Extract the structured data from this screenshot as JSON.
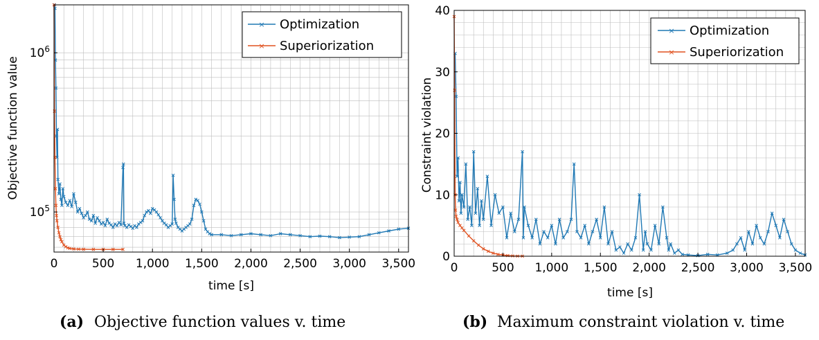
{
  "colors": {
    "optimization": "#1f78b4",
    "superiorization": "#e0501e",
    "grid": "#bdbdbd"
  },
  "chart_data": [
    {
      "type": "line",
      "panel": "a",
      "caption_tag": "(a)",
      "caption_text": "Objective function values v. time",
      "xlabel": "time [s]",
      "ylabel": "Objective function value",
      "xlim": [
        0,
        3600
      ],
      "ylim": [
        56000,
        2000000
      ],
      "yscale": "log",
      "grid": true,
      "legend": "top-right",
      "xticks": [
        0,
        500,
        1000,
        1500,
        2000,
        2500,
        3000,
        3500
      ],
      "xtick_labels": [
        "0",
        "500",
        "1,000",
        "1,500",
        "2,000",
        "2,500",
        "3,000",
        "3,500"
      ],
      "yticks": [
        100000,
        1000000
      ],
      "ytick_base": "10",
      "ytick_exps": [
        "5",
        "6"
      ],
      "series": [
        {
          "name": "Optimization",
          "x": [
            5,
            10,
            15,
            20,
            25,
            30,
            35,
            40,
            50,
            60,
            70,
            80,
            90,
            100,
            120,
            140,
            160,
            180,
            200,
            220,
            240,
            260,
            280,
            300,
            320,
            340,
            360,
            380,
            400,
            420,
            440,
            460,
            480,
            500,
            520,
            540,
            560,
            580,
            600,
            620,
            640,
            660,
            680,
            700,
            705,
            710,
            720,
            740,
            760,
            780,
            800,
            820,
            840,
            860,
            880,
            900,
            920,
            940,
            960,
            980,
            1000,
            1020,
            1040,
            1060,
            1080,
            1100,
            1120,
            1140,
            1160,
            1180,
            1200,
            1210,
            1220,
            1230,
            1240,
            1260,
            1280,
            1300,
            1320,
            1340,
            1360,
            1380,
            1400,
            1420,
            1440,
            1460,
            1480,
            1500,
            1520,
            1540,
            1560,
            1580,
            1600,
            1700,
            1800,
            1900,
            2000,
            2100,
            2200,
            2300,
            2400,
            2500,
            2600,
            2700,
            2800,
            2900,
            3000,
            3100,
            3200,
            3300,
            3400,
            3500,
            3600
          ],
          "y": [
            2000000,
            1900000,
            900000,
            600000,
            300000,
            220000,
            330000,
            160000,
            130000,
            150000,
            120000,
            110000,
            140000,
            125000,
            115000,
            110000,
            118000,
            108000,
            130000,
            115000,
            100000,
            105000,
            98000,
            92000,
            95000,
            100000,
            90000,
            88000,
            95000,
            85000,
            92000,
            88000,
            84000,
            86000,
            82000,
            90000,
            85000,
            83000,
            80000,
            84000,
            82000,
            86000,
            83000,
            190000,
            200000,
            85000,
            82000,
            80000,
            83000,
            81000,
            79000,
            82000,
            80000,
            84000,
            86000,
            88000,
            95000,
            100000,
            102000,
            98000,
            105000,
            103000,
            100000,
            96000,
            92000,
            88000,
            85000,
            83000,
            80000,
            82000,
            84000,
            170000,
            120000,
            90000,
            85000,
            80000,
            78000,
            76000,
            78000,
            80000,
            82000,
            84000,
            90000,
            110000,
            120000,
            118000,
            112000,
            100000,
            88000,
            78000,
            75000,
            73000,
            72000,
            72000,
            71000,
            72000,
            73000,
            72000,
            71000,
            73000,
            72000,
            71000,
            70000,
            70500,
            70000,
            69000,
            69500,
            70000,
            72000,
            74000,
            76000,
            78000,
            79000
          ]
        },
        {
          "name": "Superiorization",
          "x": [
            0,
            5,
            10,
            15,
            20,
            25,
            30,
            40,
            50,
            60,
            70,
            80,
            100,
            120,
            140,
            160,
            200,
            250,
            300,
            400,
            500,
            600,
            700
          ],
          "y": [
            2000000,
            430000,
            220000,
            140000,
            110000,
            95000,
            88000,
            80000,
            74000,
            70000,
            67000,
            65000,
            62000,
            60500,
            59500,
            59000,
            58600,
            58400,
            58300,
            58200,
            58200,
            58200,
            58200
          ]
        }
      ]
    },
    {
      "type": "line",
      "panel": "b",
      "caption_tag": "(b)",
      "caption_text": "Maximum constraint violation v. time",
      "xlabel": "time [s]",
      "ylabel": "Constraint violation",
      "xlim": [
        0,
        3600
      ],
      "ylim": [
        0,
        40
      ],
      "grid": true,
      "legend": "top-right",
      "xticks": [
        0,
        500,
        1000,
        1500,
        2000,
        2500,
        3000,
        3500
      ],
      "xtick_labels": [
        "0",
        "500",
        "1,000",
        "1,500",
        "2,000",
        "2,500",
        "3,000",
        "3,500"
      ],
      "yticks": [
        0,
        10,
        20,
        30,
        40
      ],
      "ytick_labels": [
        "0",
        "10",
        "20",
        "30",
        "40"
      ],
      "series": [
        {
          "name": "Optimization",
          "x": [
            10,
            20,
            30,
            40,
            50,
            60,
            70,
            80,
            100,
            120,
            140,
            160,
            180,
            200,
            220,
            240,
            260,
            280,
            300,
            340,
            380,
            420,
            460,
            500,
            540,
            580,
            620,
            660,
            700,
            710,
            720,
            760,
            800,
            840,
            880,
            920,
            960,
            1000,
            1040,
            1080,
            1120,
            1160,
            1200,
            1230,
            1260,
            1300,
            1340,
            1380,
            1420,
            1460,
            1500,
            1540,
            1580,
            1620,
            1660,
            1700,
            1740,
            1780,
            1820,
            1860,
            1900,
            1940,
            1960,
            1980,
            2020,
            2060,
            2100,
            2140,
            2180,
            2200,
            2220,
            2260,
            2300,
            2340,
            2400,
            2500,
            2600,
            2700,
            2800,
            2860,
            2900,
            2940,
            2980,
            3020,
            3060,
            3100,
            3140,
            3180,
            3220,
            3260,
            3300,
            3340,
            3380,
            3420,
            3460,
            3500,
            3550,
            3600
          ],
          "y": [
            33,
            26,
            13,
            16,
            9,
            12,
            7,
            10,
            8,
            15,
            6,
            8,
            5,
            17,
            7,
            11,
            5,
            9,
            6,
            13,
            5,
            10,
            7,
            8,
            3,
            7,
            4,
            6,
            17,
            3,
            8,
            5,
            3,
            6,
            2,
            4,
            3,
            5,
            2,
            6,
            3,
            4,
            6,
            15,
            4,
            3,
            5,
            2,
            4,
            6,
            3,
            8,
            2,
            4,
            1,
            1.5,
            0.5,
            2,
            1,
            3,
            10,
            1,
            4,
            2,
            1,
            5,
            2,
            8,
            3,
            1,
            2,
            0.5,
            1,
            0.3,
            0.2,
            0.1,
            0.3,
            0.2,
            0.5,
            1,
            2,
            3,
            1,
            4,
            2,
            5,
            3,
            2,
            4,
            7,
            5,
            3,
            6,
            4,
            2,
            1,
            0.5,
            0.2
          ]
        },
        {
          "name": "Superiorization",
          "x": [
            0,
            5,
            10,
            15,
            20,
            30,
            40,
            60,
            80,
            100,
            150,
            200,
            250,
            300,
            350,
            400,
            450,
            500,
            550,
            600,
            650,
            700
          ],
          "y": [
            39,
            27,
            10,
            7.5,
            6.5,
            6,
            5.5,
            5,
            4.6,
            4.2,
            3.3,
            2.5,
            1.8,
            1.2,
            0.8,
            0.5,
            0.3,
            0.2,
            0.1,
            0.05,
            0.02,
            0.01
          ]
        }
      ]
    }
  ]
}
